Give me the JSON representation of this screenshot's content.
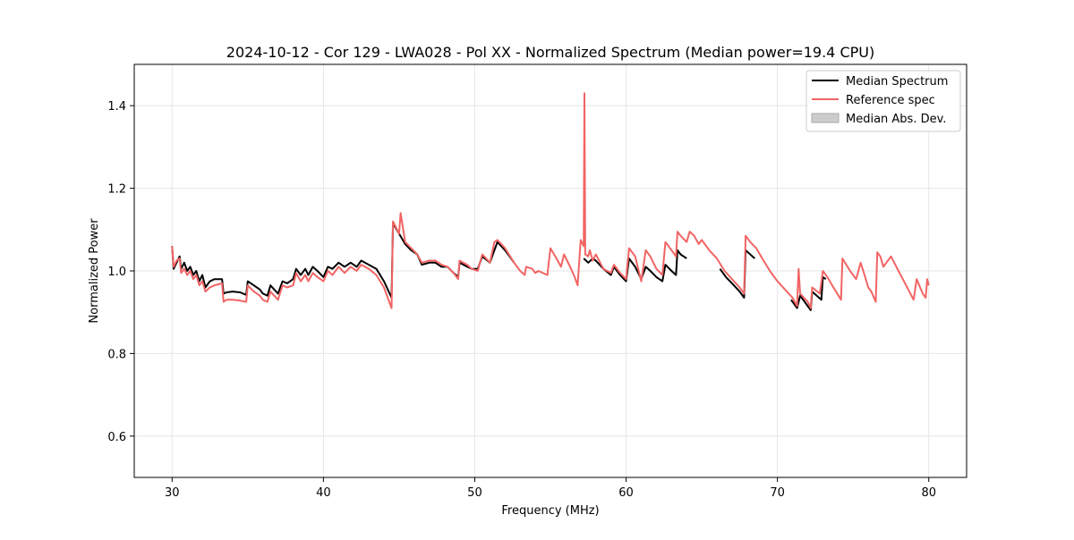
{
  "chart_data": {
    "type": "line",
    "title": "2024-10-12 - Cor 129 - LWA028 - Pol XX - Normalized Spectrum (Median power=19.4 CPU)",
    "xlabel": "Frequency (MHz)",
    "ylabel": "Normalized Power",
    "xlim": [
      27.5,
      82.5
    ],
    "ylim": [
      0.5,
      1.5
    ],
    "xticks": [
      30,
      40,
      50,
      60,
      70,
      80
    ],
    "yticks": [
      0.6,
      0.8,
      1.0,
      1.2,
      1.4
    ],
    "grid": true,
    "legend_position": "top-right",
    "legend": [
      "Median Spectrum",
      "Reference spec",
      "Median Abs. Dev."
    ],
    "colors": {
      "median": "#000000",
      "reference": "#f26464",
      "mad_fill": "#cccccc",
      "grid": "#e6e6e6"
    },
    "series": [
      {
        "name": "Median Spectrum",
        "segments": [
          [
            [
              30.0,
              1.06
            ],
            [
              30.1,
              1.005
            ],
            [
              30.3,
              1.02
            ],
            [
              30.5,
              1.035
            ],
            [
              30.6,
              1.005
            ],
            [
              30.8,
              1.02
            ],
            [
              31.0,
              1.0
            ],
            [
              31.2,
              1.01
            ],
            [
              31.4,
              0.99
            ],
            [
              31.6,
              1.0
            ],
            [
              31.8,
              0.975
            ],
            [
              32.0,
              0.99
            ],
            [
              32.2,
              0.96
            ],
            [
              32.5,
              0.975
            ],
            [
              32.8,
              0.98
            ],
            [
              33.3,
              0.98
            ],
            [
              33.4,
              0.945
            ],
            [
              33.6,
              0.948
            ],
            [
              34.0,
              0.95
            ],
            [
              34.5,
              0.948
            ],
            [
              34.9,
              0.942
            ],
            [
              35.0,
              0.975
            ],
            [
              35.4,
              0.965
            ],
            [
              35.8,
              0.955
            ],
            [
              36.0,
              0.945
            ],
            [
              36.3,
              0.94
            ],
            [
              36.5,
              0.965
            ],
            [
              37.0,
              0.945
            ],
            [
              37.3,
              0.975
            ],
            [
              37.6,
              0.97
            ],
            [
              38.0,
              0.98
            ],
            [
              38.2,
              1.005
            ],
            [
              38.5,
              0.99
            ],
            [
              38.8,
              1.005
            ],
            [
              39.0,
              0.99
            ],
            [
              39.3,
              1.01
            ],
            [
              39.6,
              1.0
            ],
            [
              40.0,
              0.985
            ],
            [
              40.3,
              1.01
            ],
            [
              40.6,
              1.005
            ],
            [
              41.0,
              1.02
            ],
            [
              41.4,
              1.01
            ],
            [
              41.8,
              1.02
            ],
            [
              42.2,
              1.01
            ],
            [
              42.5,
              1.025
            ],
            [
              43.0,
              1.015
            ],
            [
              43.5,
              1.005
            ],
            [
              44.0,
              0.975
            ],
            [
              44.5,
              0.935
            ],
            [
              44.6,
              1.115
            ],
            [
              45.0,
              1.09
            ],
            [
              45.4,
              1.065
            ],
            [
              45.8,
              1.05
            ],
            [
              46.2,
              1.04
            ],
            [
              46.5,
              1.015
            ],
            [
              47.0,
              1.02
            ],
            [
              47.4,
              1.02
            ],
            [
              47.8,
              1.01
            ],
            [
              48.2,
              1.01
            ],
            [
              48.6,
              0.995
            ],
            [
              48.9,
              0.985
            ],
            [
              49.0,
              1.02
            ],
            [
              49.5,
              1.01
            ],
            [
              49.8,
              1.005
            ],
            [
              50.2,
              1.005
            ],
            [
              50.5,
              1.035
            ],
            [
              51.0,
              1.02
            ],
            [
              51.3,
              1.05
            ],
            [
              51.5,
              1.07
            ],
            [
              52.0,
              1.05
            ],
            [
              52.6,
              1.02
            ]
          ],
          [
            [
              57.2,
              1.03
            ],
            [
              57.5,
              1.02
            ],
            [
              57.8,
              1.03
            ],
            [
              58.0,
              1.025
            ],
            [
              58.5,
              1.005
            ],
            [
              59.0,
              0.99
            ],
            [
              59.2,
              1.01
            ],
            [
              59.6,
              0.99
            ],
            [
              60.0,
              0.975
            ],
            [
              60.2,
              1.03
            ],
            [
              60.6,
              1.01
            ],
            [
              61.0,
              0.98
            ],
            [
              61.3,
              1.01
            ],
            [
              61.6,
              1.0
            ],
            [
              62.0,
              0.985
            ],
            [
              62.4,
              0.975
            ],
            [
              62.6,
              1.015
            ],
            [
              63.0,
              1.0
            ],
            [
              63.3,
              0.99
            ],
            [
              63.4,
              1.05
            ],
            [
              63.6,
              1.04
            ],
            [
              64.0,
              1.03
            ]
          ],
          [
            [
              66.2,
              1.005
            ],
            [
              66.6,
              0.985
            ],
            [
              67.0,
              0.97
            ],
            [
              67.5,
              0.95
            ],
            [
              67.8,
              0.935
            ],
            [
              67.9,
              1.05
            ],
            [
              68.2,
              1.04
            ],
            [
              68.5,
              1.03
            ]
          ],
          [
            [
              70.9,
              0.93
            ],
            [
              71.3,
              0.91
            ],
            [
              71.5,
              0.94
            ],
            [
              71.8,
              0.925
            ],
            [
              72.2,
              0.905
            ],
            [
              72.3,
              0.95
            ],
            [
              72.6,
              0.94
            ],
            [
              72.9,
              0.93
            ],
            [
              73.0,
              0.985
            ],
            [
              73.2,
              0.98
            ]
          ]
        ]
      },
      {
        "name": "Reference spec",
        "segments": [
          [
            [
              30.0,
              1.06
            ],
            [
              30.1,
              1.01
            ],
            [
              30.3,
              1.025
            ],
            [
              30.5,
              1.03
            ],
            [
              30.6,
              0.995
            ],
            [
              30.8,
              1.005
            ],
            [
              31.0,
              0.99
            ],
            [
              31.2,
              1.0
            ],
            [
              31.4,
              0.98
            ],
            [
              31.6,
              0.99
            ],
            [
              31.8,
              0.965
            ],
            [
              32.0,
              0.975
            ],
            [
              32.2,
              0.95
            ],
            [
              32.5,
              0.96
            ],
            [
              32.8,
              0.965
            ],
            [
              33.3,
              0.97
            ],
            [
              33.4,
              0.925
            ],
            [
              33.6,
              0.93
            ],
            [
              34.0,
              0.93
            ],
            [
              34.5,
              0.928
            ],
            [
              34.9,
              0.925
            ],
            [
              35.0,
              0.965
            ],
            [
              35.4,
              0.95
            ],
            [
              35.8,
              0.94
            ],
            [
              36.0,
              0.93
            ],
            [
              36.3,
              0.925
            ],
            [
              36.5,
              0.95
            ],
            [
              37.0,
              0.93
            ],
            [
              37.3,
              0.965
            ],
            [
              37.6,
              0.96
            ],
            [
              38.0,
              0.965
            ],
            [
              38.2,
              0.995
            ],
            [
              38.5,
              0.975
            ],
            [
              38.8,
              0.99
            ],
            [
              39.0,
              0.975
            ],
            [
              39.3,
              0.995
            ],
            [
              39.6,
              0.985
            ],
            [
              40.0,
              0.975
            ],
            [
              40.3,
              1.0
            ],
            [
              40.6,
              0.99
            ],
            [
              41.0,
              1.01
            ],
            [
              41.4,
              0.995
            ],
            [
              41.8,
              1.01
            ],
            [
              42.2,
              1.0
            ],
            [
              42.5,
              1.015
            ],
            [
              43.0,
              1.005
            ],
            [
              43.5,
              0.99
            ],
            [
              44.0,
              0.96
            ],
            [
              44.5,
              0.91
            ],
            [
              44.6,
              1.12
            ],
            [
              45.0,
              1.09
            ],
            [
              45.1,
              1.14
            ],
            [
              45.4,
              1.07
            ],
            [
              45.8,
              1.055
            ],
            [
              46.2,
              1.04
            ],
            [
              46.5,
              1.02
            ],
            [
              47.0,
              1.025
            ],
            [
              47.4,
              1.025
            ],
            [
              47.8,
              1.015
            ],
            [
              48.2,
              1.01
            ],
            [
              48.6,
              0.995
            ],
            [
              48.9,
              0.98
            ],
            [
              49.0,
              1.025
            ],
            [
              49.5,
              1.015
            ],
            [
              49.8,
              1.005
            ],
            [
              50.2,
              1.0
            ],
            [
              50.5,
              1.04
            ],
            [
              51.0,
              1.02
            ],
            [
              51.3,
              1.07
            ],
            [
              51.5,
              1.075
            ],
            [
              52.0,
              1.055
            ],
            [
              52.6,
              1.02
            ],
            [
              53.0,
              1.0
            ],
            [
              53.3,
              0.99
            ],
            [
              53.4,
              1.01
            ],
            [
              53.8,
              1.005
            ],
            [
              54.0,
              0.995
            ],
            [
              54.2,
              1.0
            ],
            [
              54.8,
              0.99
            ],
            [
              55.0,
              1.055
            ],
            [
              55.4,
              1.03
            ],
            [
              55.7,
              1.01
            ],
            [
              55.9,
              1.04
            ],
            [
              56.3,
              1.01
            ],
            [
              56.6,
              0.985
            ],
            [
              56.8,
              0.965
            ],
            [
              57.0,
              1.075
            ],
            [
              57.2,
              1.06
            ],
            [
              57.25,
              1.43
            ],
            [
              57.3,
              1.04
            ],
            [
              57.5,
              1.035
            ],
            [
              57.6,
              1.05
            ],
            [
              57.8,
              1.025
            ],
            [
              58.0,
              1.04
            ],
            [
              58.5,
              1.005
            ],
            [
              59.0,
              0.995
            ],
            [
              59.2,
              1.015
            ],
            [
              59.6,
              0.995
            ],
            [
              60.0,
              0.98
            ],
            [
              60.2,
              1.055
            ],
            [
              60.6,
              1.035
            ],
            [
              61.0,
              0.975
            ],
            [
              61.3,
              1.05
            ],
            [
              61.6,
              1.035
            ],
            [
              62.0,
              1.005
            ],
            [
              62.4,
              0.99
            ],
            [
              62.6,
              1.07
            ],
            [
              63.0,
              1.05
            ],
            [
              63.3,
              1.035
            ],
            [
              63.4,
              1.095
            ],
            [
              63.6,
              1.085
            ],
            [
              64.0,
              1.07
            ],
            [
              64.2,
              1.095
            ],
            [
              64.5,
              1.085
            ],
            [
              64.8,
              1.065
            ],
            [
              65.0,
              1.075
            ],
            [
              65.5,
              1.05
            ],
            [
              66.0,
              1.03
            ],
            [
              66.5,
              1.0
            ],
            [
              67.0,
              0.98
            ],
            [
              67.5,
              0.96
            ],
            [
              67.8,
              0.945
            ],
            [
              67.9,
              1.085
            ],
            [
              68.2,
              1.07
            ],
            [
              68.6,
              1.055
            ],
            [
              69.0,
              1.03
            ],
            [
              69.5,
              1.0
            ],
            [
              70.0,
              0.975
            ],
            [
              70.5,
              0.955
            ],
            [
              71.0,
              0.935
            ],
            [
              71.3,
              0.915
            ],
            [
              71.4,
              1.005
            ],
            [
              71.5,
              0.945
            ],
            [
              72.0,
              0.925
            ],
            [
              72.2,
              0.91
            ],
            [
              72.3,
              0.96
            ],
            [
              72.8,
              0.945
            ],
            [
              73.0,
              1.0
            ],
            [
              73.3,
              0.985
            ],
            [
              73.7,
              0.96
            ],
            [
              74.2,
              0.93
            ],
            [
              74.3,
              1.03
            ],
            [
              74.8,
              1.0
            ],
            [
              75.2,
              0.98
            ],
            [
              75.5,
              1.02
            ],
            [
              75.8,
              0.985
            ],
            [
              76.0,
              0.96
            ],
            [
              76.2,
              0.95
            ],
            [
              76.5,
              0.925
            ],
            [
              76.6,
              1.045
            ],
            [
              76.8,
              1.035
            ],
            [
              77.0,
              1.01
            ],
            [
              77.2,
              1.02
            ],
            [
              77.5,
              1.035
            ],
            [
              78.0,
              1.0
            ],
            [
              78.5,
              0.965
            ],
            [
              79.0,
              0.93
            ],
            [
              79.2,
              0.98
            ],
            [
              79.6,
              0.945
            ],
            [
              79.8,
              0.935
            ],
            [
              79.9,
              0.98
            ],
            [
              80.0,
              0.965
            ]
          ]
        ]
      }
    ]
  }
}
